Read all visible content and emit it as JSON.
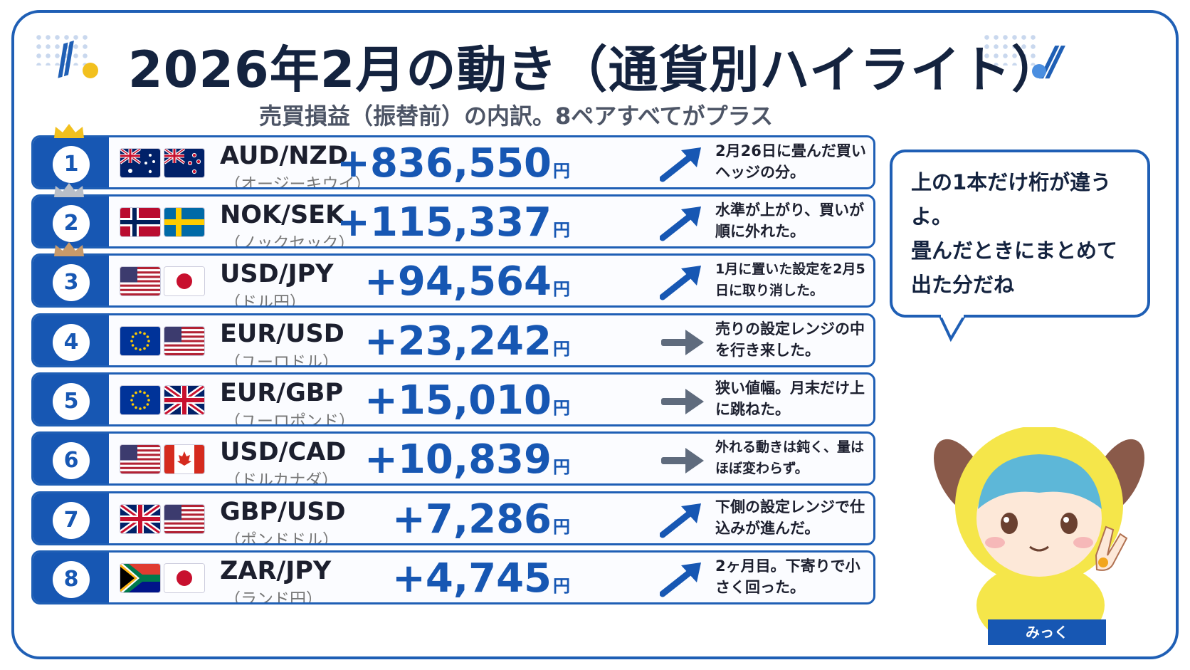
{
  "title": "2026年2月の動き（通貨別ハイライト）",
  "subtitle": "売買損益（振替前）の内訳。8ペアすべてがプラス",
  "rows": [
    {
      "rank": "1",
      "pair": "AUD/NZD",
      "kana": "（オージーキウイ）",
      "amount": "+836,550",
      "yen": "円",
      "trend": "up",
      "note": "2月26日に畳んだ買いヘッジの分。",
      "crown": "gold"
    },
    {
      "rank": "2",
      "pair": "NOK/SEK",
      "kana": "（ノックセック）",
      "amount": "+115,337",
      "yen": "円",
      "trend": "up",
      "note": "水準が上がり、買いが順に外れた。",
      "crown": "silver"
    },
    {
      "rank": "3",
      "pair": "USD/JPY",
      "kana": "（ドル円）",
      "amount": "+94,564",
      "yen": "円",
      "trend": "up",
      "note": "1月に置いた設定を2月5日に取り消した。",
      "crown": "bronze"
    },
    {
      "rank": "4",
      "pair": "EUR/USD",
      "kana": "（ユーロドル）",
      "amount": "+23,242",
      "yen": "円",
      "trend": "flat",
      "note": "売りの設定レンジの中を行き来した。"
    },
    {
      "rank": "5",
      "pair": "EUR/GBP",
      "kana": "（ユーロポンド）",
      "amount": "+15,010",
      "yen": "円",
      "trend": "flat",
      "note": "狭い値幅。月末だけ上に跳ねた。"
    },
    {
      "rank": "6",
      "pair": "USD/CAD",
      "kana": "（ドルカナダ）",
      "amount": "+10,839",
      "yen": "円",
      "trend": "flat",
      "note": "外れる動きは鈍く、量はほぼ変わらず。"
    },
    {
      "rank": "7",
      "pair": "GBP/USD",
      "kana": "（ポンドドル）",
      "amount": "+7,286",
      "yen": "円",
      "trend": "up",
      "note": "下側の設定レンジで仕込みが進んだ。"
    },
    {
      "rank": "8",
      "pair": "ZAR/JPY",
      "kana": "（ランド円）",
      "amount": "+4,745",
      "yen": "円",
      "trend": "up",
      "note": "2ヶ月目。下寄りで小さく回った。"
    }
  ],
  "bubble": {
    "text": "上の1本だけ桁が違うよ。\n畳んだときにまとめて出た分だね"
  },
  "mascot": {
    "name": "みっく"
  },
  "colors": {
    "brand": "#1757b3",
    "gold": "#f2c01e",
    "silver": "#b9bfc8",
    "bronze": "#c89a6a",
    "flat_arrow": "#5f6b7d"
  }
}
